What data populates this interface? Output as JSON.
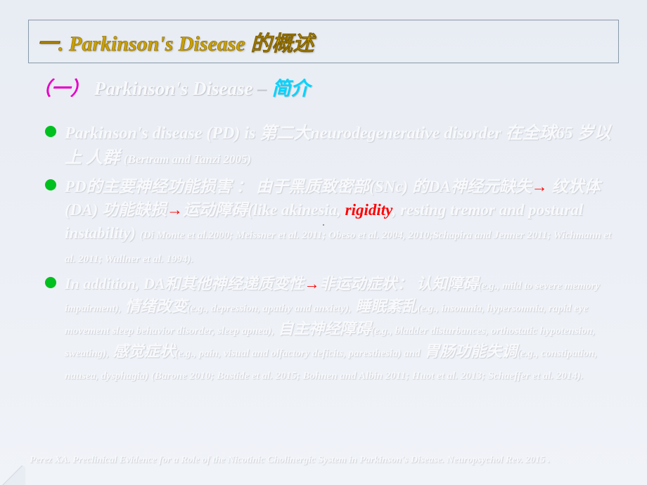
{
  "title": {
    "main": "一. Parkinson's Disease 的概述"
  },
  "subtitle": {
    "paren": "（一）",
    "pd": "Parkinson's Disease",
    "dash": " – ",
    "intro": "简介"
  },
  "bullets": {
    "b1_a": "Parkinson's disease (PD) is 第二大neurodegenerative disorder 在全球65 岁以上 人群 ",
    "b1_cite": "(Bertram and Tanzi 2005)",
    "b2_a": "PD的主要神经功能损害 ： 由于黑质致密部(SNc) 的DA神经元缺失",
    "b2_arrow1": "→",
    "b2_b": " 纹状体(DA) 功能缺损",
    "b2_arrow2": "→",
    "b2_c": "运动障碍(like akinesia, ",
    "b2_rigidity": "rigidity",
    "b2_d": ", resting tremor and postural instability) ",
    "b2_cite": "(Di Monte et al.2000; Meissner et al. 2011; Obeso et al. 2004, 2010;Schapira and Jenner 2011; Wichmann et al. 2011; Wullner et al. 1994).",
    "b3_a": "In addition, DA和其他神经递质变性",
    "b3_arrow": "→",
    "b3_b": "非运动症状： 认知障碍",
    "b3_s1": "(e.g., mild to severe memory impairment),",
    "b3_c": " 情绪改变",
    "b3_s2": "(e.g., depression, apathy and anxiety),",
    "b3_d": " 睡眠紊乱",
    "b3_s3": "(e.g., insomnia, hypersomnia, rapid eye movement sleep behavior disorder, sleep apnea),",
    "b3_e": " 自主神经障碍",
    "b3_s4": "(e.g., bladder disturbances, orthostatic hypotension, sweating),",
    "b3_f": " 感觉症状",
    "b3_s5": "(e.g., pain, visual and olfactory deficits, paresthesia) and",
    "b3_g": " 胃肠功能失调",
    "b3_s6": "(e.g., constipation, nausea, dysphagia)",
    "b3_cite": " (Barone 2010; Bastide et al. 2015; Bohnen and Albin 2011; Huot et al. 2013; Schaeffer et al. 2014)."
  },
  "center_dot": "·",
  "footer": "Perez XA. Preclinical Evidence for a Role of the Nicotinic Cholinergic System in Parkinson's Disease. Neuropsychol Rev. 2015 .",
  "colors": {
    "bg_top": "#e8ecf3",
    "title_gold": "#c9a000",
    "sub_magenta": "#e600c8",
    "sub_cyan": "#00d4ff",
    "body_white": "#f8f9fb",
    "bullet_green": "#00c020",
    "accent_red": "#ff0000"
  }
}
